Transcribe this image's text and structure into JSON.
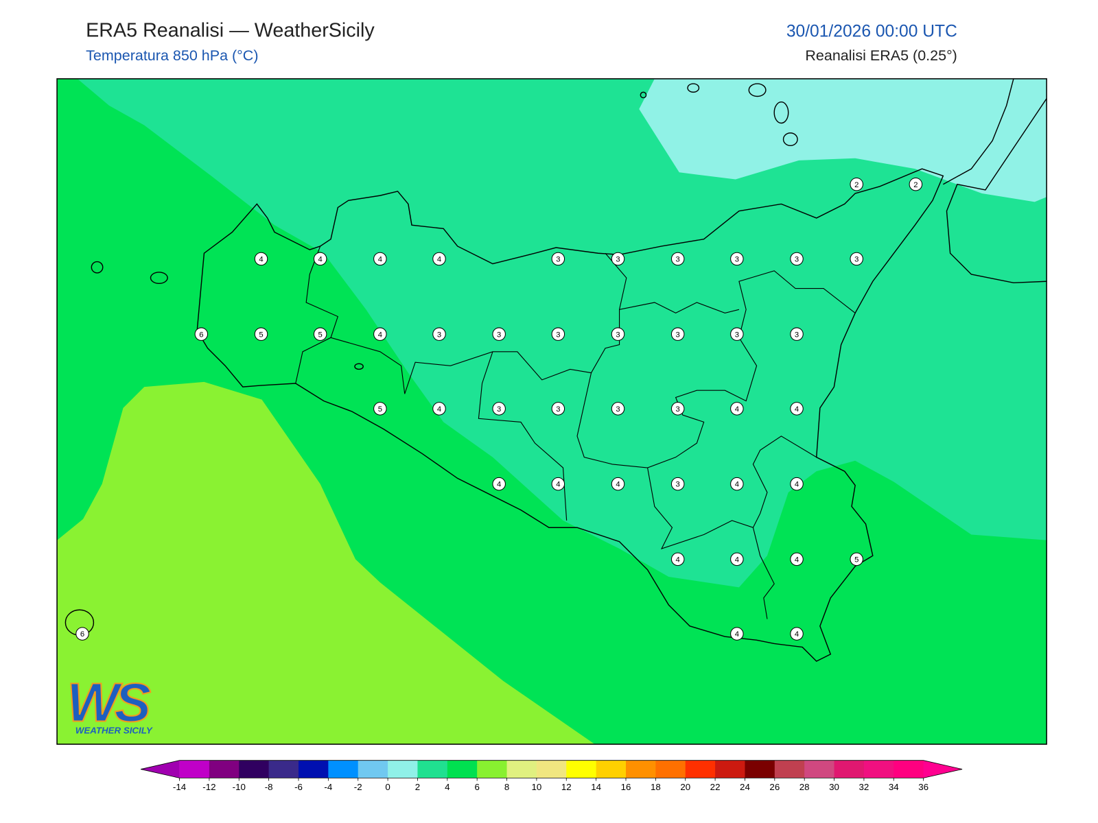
{
  "header": {
    "title": "ERA5 Reanalisi — WeatherSicily",
    "subtitle": "Temperatura 850 hPa (°C)",
    "datetime": "30/01/2026 00:00 UTC",
    "source": "Reanalisi ERA5 (0.25°)"
  },
  "map": {
    "stations": [
      4,
      4,
      4,
      4,
      3,
      3,
      3,
      3,
      3,
      3,
      2,
      2,
      6,
      5,
      5,
      4,
      3,
      3,
      3,
      3,
      3,
      3,
      3,
      5,
      4,
      3,
      3,
      3,
      3,
      4,
      4,
      4,
      4,
      4,
      3,
      4,
      4,
      4,
      4,
      4,
      5,
      6,
      4,
      4
    ]
  },
  "colorbar": {
    "under_color": "#a000b0",
    "over_color": "#ff0090",
    "colors": [
      "#c000c8",
      "#800080",
      "#300060",
      "#3a2a8a",
      "#0010b0",
      "#0090ff",
      "#70c8f0",
      "#90f0e8",
      "#20e090",
      "#00e050",
      "#88f030",
      "#e0f080",
      "#f0e680",
      "#ffff00",
      "#ffd000",
      "#ff9000",
      "#ff7000",
      "#ff3000",
      "#cc1a10",
      "#7a0000",
      "#c04050",
      "#d04880",
      "#e01870",
      "#f01080",
      "#ff0080"
    ],
    "ticks": [
      -14,
      -12,
      -10,
      -8,
      -6,
      -4,
      -2,
      0,
      2,
      4,
      6,
      8,
      10,
      12,
      14,
      16,
      18,
      20,
      22,
      24,
      26,
      28,
      30,
      32,
      34,
      36
    ]
  },
  "logo": {
    "text": "WS",
    "subtext": "WEATHER SICILY"
  }
}
